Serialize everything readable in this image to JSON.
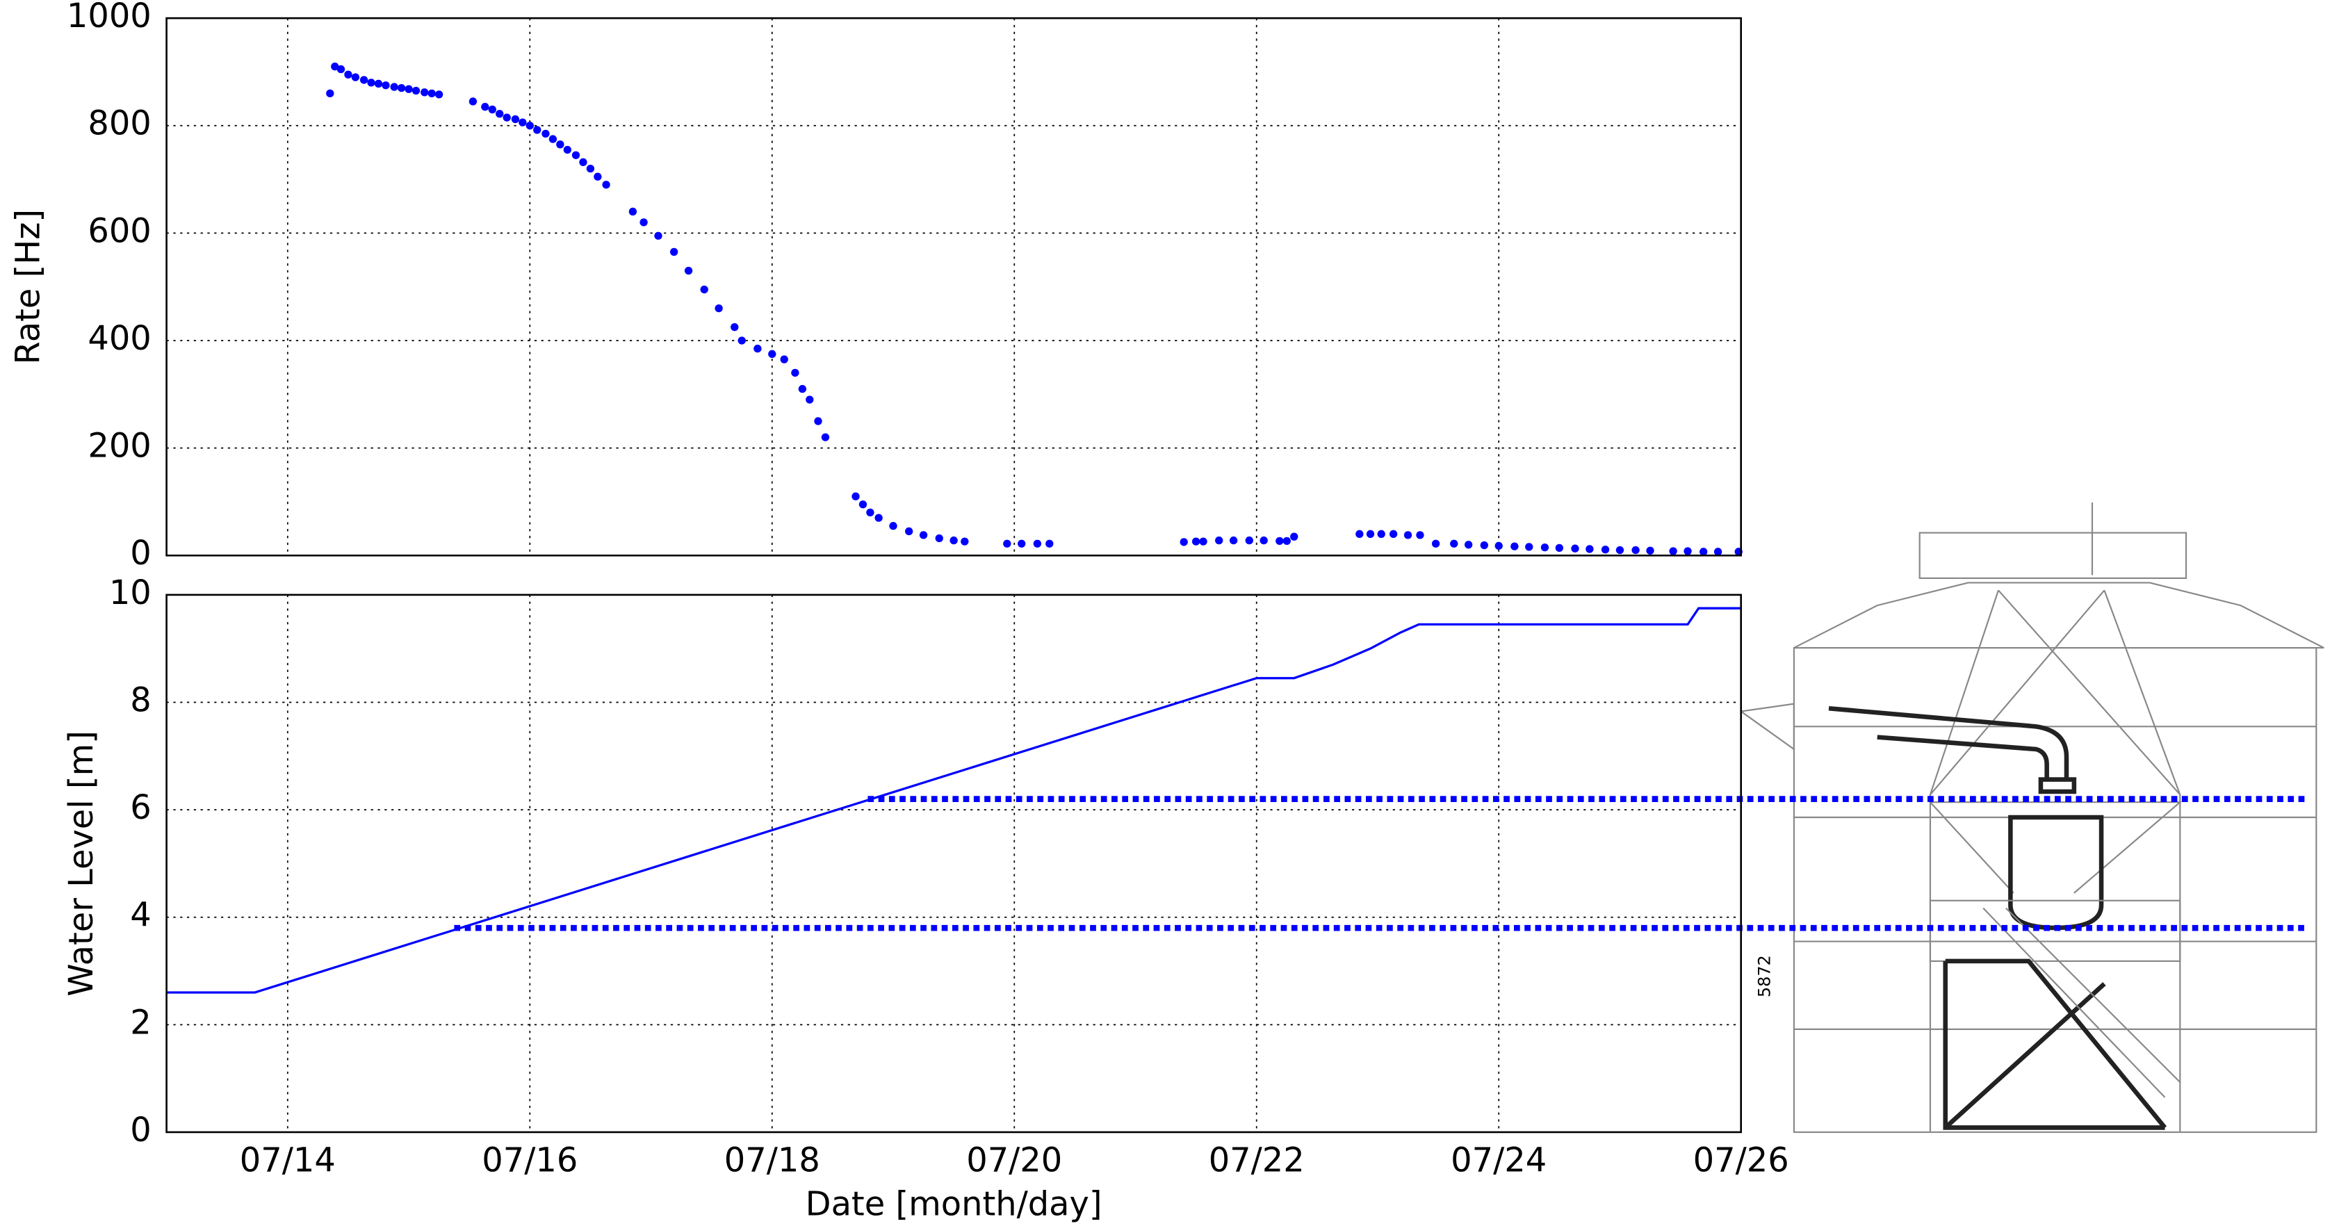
{
  "chart_data": [
    {
      "type": "scatter",
      "ylabel": "Rate [Hz]",
      "color": "#0000ff",
      "xlim": [
        13,
        26
      ],
      "ylim": [
        0,
        1000
      ],
      "yticks": [
        0,
        200,
        400,
        600,
        800,
        1000
      ],
      "grid": true,
      "x": [
        14.35,
        14.39,
        14.44,
        14.5,
        14.56,
        14.63,
        14.69,
        14.75,
        14.81,
        14.88,
        14.94,
        15.0,
        15.06,
        15.13,
        15.19,
        15.25,
        15.53,
        15.63,
        15.69,
        15.75,
        15.81,
        15.88,
        15.94,
        16.0,
        16.06,
        16.13,
        16.19,
        16.25,
        16.31,
        16.38,
        16.44,
        16.5,
        16.56,
        16.63,
        16.85,
        16.94,
        17.06,
        17.19,
        17.31,
        17.44,
        17.56,
        17.69,
        17.75,
        17.88,
        18.0,
        18.1,
        18.19,
        18.25,
        18.31,
        18.38,
        18.44,
        18.69,
        18.75,
        18.81,
        18.88,
        19.0,
        19.13,
        19.25,
        19.38,
        19.5,
        19.59,
        19.94,
        20.06,
        20.19,
        20.29,
        21.4,
        21.5,
        21.56,
        21.69,
        21.81,
        21.94,
        22.06,
        22.19,
        22.25,
        22.31,
        22.85,
        22.94,
        23.03,
        23.13,
        23.25,
        23.35,
        23.48,
        23.63,
        23.75,
        23.88,
        24.0,
        24.13,
        24.25,
        24.38,
        24.5,
        24.63,
        24.75,
        24.88,
        25.0,
        25.13,
        25.25,
        25.44,
        25.56,
        25.69,
        25.81,
        25.98
      ],
      "values": [
        860,
        910,
        905,
        895,
        890,
        885,
        880,
        878,
        875,
        872,
        870,
        868,
        865,
        862,
        860,
        858,
        845,
        835,
        830,
        822,
        815,
        812,
        806,
        800,
        792,
        785,
        775,
        765,
        755,
        745,
        732,
        720,
        705,
        690,
        640,
        620,
        595,
        565,
        530,
        495,
        460,
        425,
        400,
        385,
        375,
        365,
        340,
        310,
        290,
        250,
        220,
        110,
        95,
        80,
        70,
        55,
        45,
        38,
        32,
        28,
        26,
        22,
        22,
        22,
        22,
        25,
        26,
        26,
        28,
        28,
        28,
        28,
        27,
        27,
        35,
        40,
        40,
        40,
        40,
        38,
        38,
        22,
        22,
        20,
        19,
        18,
        17,
        16,
        15,
        14,
        13,
        12,
        11,
        10,
        10,
        9,
        8,
        8,
        7,
        7,
        7
      ]
    },
    {
      "type": "line",
      "ylabel": "Water Level [m]",
      "xlabel": "Date [month/day]",
      "color": "#0000ff",
      "xlim": [
        13,
        26
      ],
      "ylim": [
        0,
        10
      ],
      "yticks": [
        0,
        2,
        4,
        6,
        8,
        10
      ],
      "grid": true,
      "xticks": [
        {
          "value": 14,
          "label": "07/14"
        },
        {
          "value": 16,
          "label": "07/16"
        },
        {
          "value": 18,
          "label": "07/18"
        },
        {
          "value": 20,
          "label": "07/20"
        },
        {
          "value": 22,
          "label": "07/22"
        },
        {
          "value": 24,
          "label": "07/24"
        },
        {
          "value": 26,
          "label": "07/26"
        }
      ],
      "x": [
        13,
        13.73,
        22.0,
        22.31,
        22.63,
        22.94,
        23.19,
        23.34,
        25.56,
        25.65,
        26.0
      ],
      "values": [
        2.6,
        2.6,
        8.45,
        8.45,
        8.7,
        9.0,
        9.3,
        9.45,
        9.45,
        9.75,
        9.75
      ],
      "hlines": [
        {
          "y": 6.2,
          "x_start": 18.79
        },
        {
          "y": 3.8,
          "x_start": 15.375
        }
      ]
    }
  ],
  "diagram": {
    "label": "5872"
  }
}
